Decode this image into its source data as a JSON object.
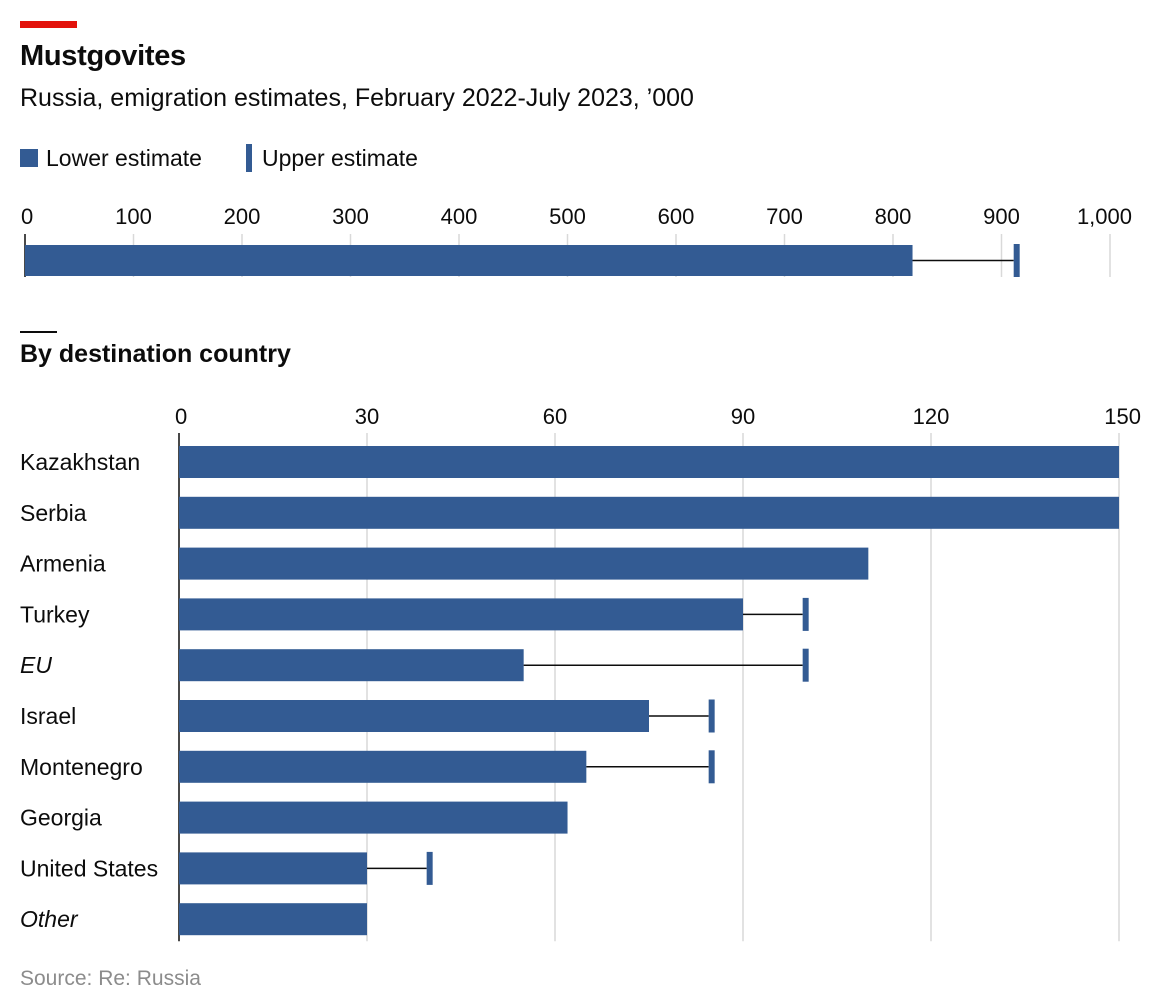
{
  "header": {
    "title": "Mustgovites",
    "subtitle": "Russia, emigration estimates, February 2022-July 2023, ’000"
  },
  "legend": {
    "lower_label": "Lower estimate",
    "upper_label": "Upper estimate"
  },
  "section": {
    "title": "By destination country"
  },
  "source": "Source: Re: Russia",
  "colors": {
    "bar": "#335b93",
    "accent": "#e3120b",
    "grid": "#d9d9d9"
  },
  "chart_data": [
    {
      "type": "bar",
      "orientation": "horizontal",
      "categories": [
        ""
      ],
      "series": [
        {
          "name": "Lower estimate",
          "values": [
            818
          ]
        },
        {
          "name": "Upper estimate",
          "values": [
            914
          ]
        }
      ],
      "xlim": [
        0,
        1000
      ],
      "ticks": [
        0,
        100,
        200,
        300,
        400,
        500,
        600,
        700,
        800,
        900,
        1000
      ],
      "tick_labels": [
        "0",
        "100",
        "200",
        "300",
        "400",
        "500",
        "600",
        "700",
        "800",
        "900",
        "1,000"
      ],
      "grid": true
    },
    {
      "type": "bar",
      "orientation": "horizontal",
      "title": "By destination country",
      "categories": [
        "Kazakhstan",
        "Serbia",
        "Armenia",
        "Turkey",
        "EU",
        "Israel",
        "Montenegro",
        "Georgia",
        "United States",
        "Other"
      ],
      "italic_categories": [
        "EU",
        "Other"
      ],
      "series": [
        {
          "name": "Lower estimate",
          "values": [
            150,
            150,
            110,
            90,
            55,
            75,
            65,
            62,
            30,
            30
          ]
        },
        {
          "name": "Upper estimate",
          "values": [
            null,
            null,
            null,
            100,
            100,
            85,
            85,
            null,
            40,
            null
          ]
        }
      ],
      "xlim": [
        0,
        150
      ],
      "ticks": [
        0,
        30,
        60,
        90,
        120,
        150
      ],
      "tick_labels": [
        "0",
        "30",
        "60",
        "90",
        "120",
        "150"
      ],
      "grid": true
    }
  ]
}
